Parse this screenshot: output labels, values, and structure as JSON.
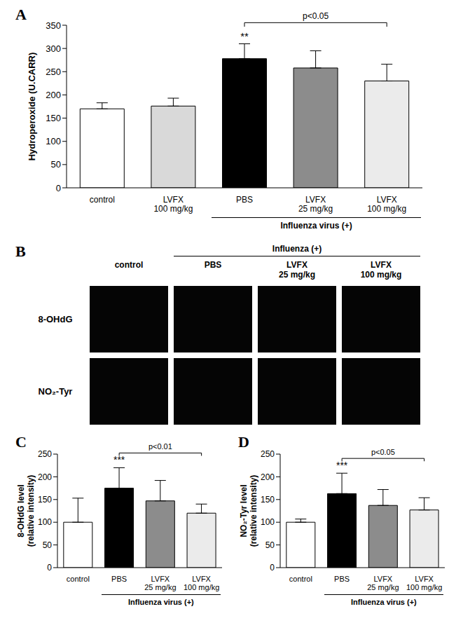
{
  "chart_data": [
    {
      "title": "A",
      "type": "bar",
      "ylabel": "Hydroperoxide (U.CARR)",
      "categories": [
        "control",
        "LVFX 100 mg/kg",
        "PBS",
        "LVFX 25 mg/kg",
        "LVFX 100 mg/kg"
      ],
      "values": [
        170,
        176,
        278,
        258,
        230
      ],
      "error": [
        13,
        17,
        32,
        37,
        36
      ],
      "colors": [
        "#ffffff",
        "#d9d9d9",
        "#000000",
        "#8c8c8c",
        "#ebebeb"
      ],
      "ylim": [
        0,
        350
      ],
      "yticks": [
        0,
        50,
        100,
        150,
        200,
        250,
        300,
        350
      ],
      "group": {
        "label": "Influenza virus (+)",
        "start": 2
      },
      "annotations": [
        {
          "text": "**",
          "index": 2
        }
      ],
      "brackets": [
        {
          "text": "p<0.05",
          "from": 2,
          "to": 4
        }
      ]
    },
    {
      "title": "C",
      "type": "bar",
      "ylabel": "8-OHdG level\n(relative intensity)",
      "categories": [
        "control",
        "PBS",
        "LVFX 25 mg/kg",
        "LVFX 100 mg/kg"
      ],
      "values": [
        100,
        175,
        147,
        120
      ],
      "error": [
        53,
        45,
        45,
        20
      ],
      "colors": [
        "#ffffff",
        "#000000",
        "#8c8c8c",
        "#ebebeb"
      ],
      "ylim": [
        0,
        250
      ],
      "yticks": [
        0,
        50,
        100,
        150,
        200,
        250
      ],
      "group": {
        "label": "Influenza virus (+)",
        "start": 1
      },
      "annotations": [
        {
          "text": "***",
          "index": 1
        }
      ],
      "brackets": [
        {
          "text": "p<0.01",
          "from": 1,
          "to": 3
        }
      ]
    },
    {
      "title": "D",
      "type": "bar",
      "ylabel": "NO₂-Tyr level\n(relative intensity)",
      "categories": [
        "control",
        "PBS",
        "LVFX 25 mg/kg",
        "LVFX 100 mg/kg"
      ],
      "values": [
        100,
        163,
        137,
        127
      ],
      "error": [
        7,
        45,
        35,
        27
      ],
      "colors": [
        "#ffffff",
        "#000000",
        "#8c8c8c",
        "#ebebeb"
      ],
      "ylim": [
        0,
        250
      ],
      "yticks": [
        0,
        50,
        100,
        150,
        200,
        250
      ],
      "group": {
        "label": "Influenza virus (+)",
        "start": 1
      },
      "annotations": [
        {
          "text": "***",
          "index": 1
        }
      ],
      "brackets": [
        {
          "text": "p<0.05",
          "from": 1,
          "to": 3
        }
      ]
    }
  ],
  "image_panel": {
    "title": "B",
    "group_label": "Influenza (+)",
    "group_start": 1,
    "columns": [
      "control",
      "PBS",
      "LVFX 25 mg/kg",
      "LVFX 100 mg/kg"
    ],
    "rows": [
      "8-OHdG",
      "NO₂-Tyr"
    ]
  }
}
